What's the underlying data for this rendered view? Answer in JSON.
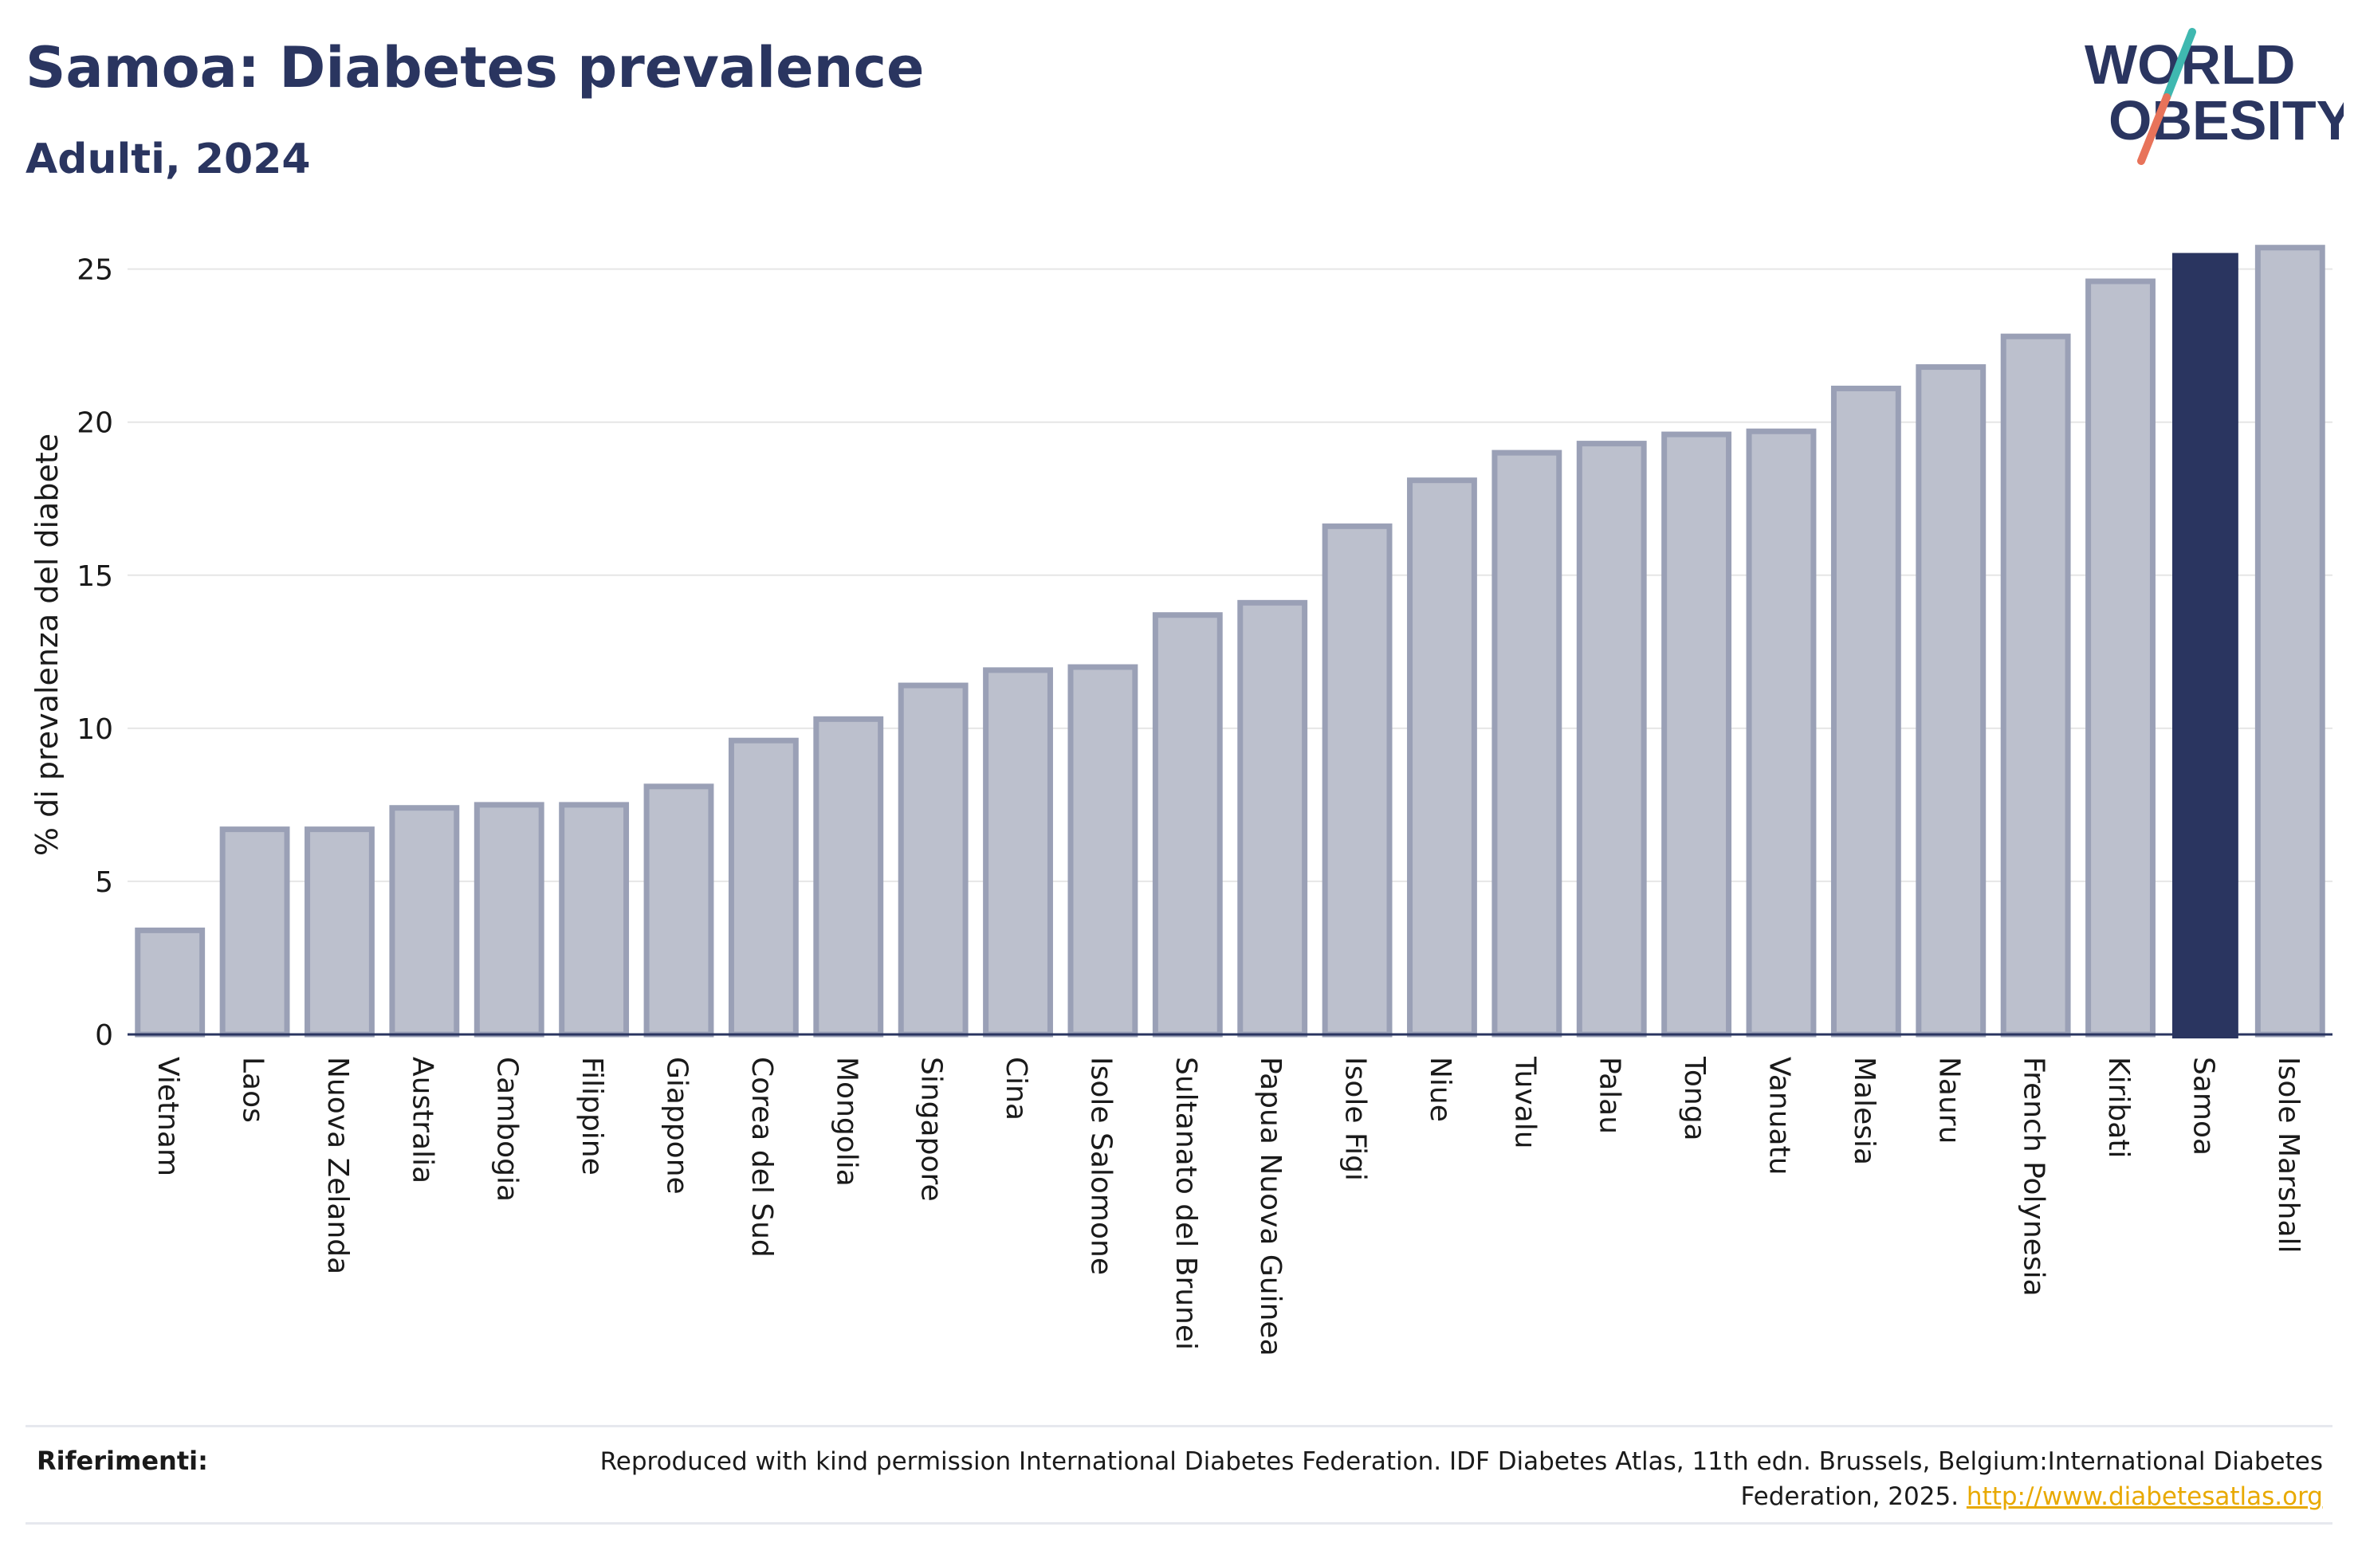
{
  "header": {
    "title": "Samoa: Diabetes prevalence",
    "subtitle": "Adulti, 2024"
  },
  "logo": {
    "line1": "WORLD",
    "line2": "OBESITY",
    "accent_teal": "#3fb8b0",
    "accent_coral": "#e8735a",
    "text_color": "#2a3560"
  },
  "chart_data": {
    "type": "bar",
    "ylabel": "% di prevalenza del diabete",
    "xlabel": "",
    "ylim": [
      0,
      26.5
    ],
    "yticks": [
      0,
      5,
      10,
      15,
      20,
      25
    ],
    "grid": true,
    "highlight": "Samoa",
    "colors": {
      "bar_fill": "#bcc0cd",
      "bar_stroke": "#9aa0b6",
      "highlight_fill": "#2a3560",
      "grid": "#e6e6e6",
      "axis": "#2a3560"
    },
    "categories": [
      "Vietnam",
      "Laos",
      "Nuova Zelanda",
      "Australia",
      "Cambogia",
      "Filippine",
      "Giappone",
      "Corea del Sud",
      "Mongolia",
      "Singapore",
      "Cina",
      "Isole Salomone",
      "Sultanato del Brunei",
      "Papua Nuova Guinea",
      "Isole Figi",
      "Niue",
      "Tuvalu",
      "Palau",
      "Tonga",
      "Vanuatu",
      "Malesia",
      "Nauru",
      "French Polynesia",
      "Kiribati",
      "Samoa",
      "Isole Marshall"
    ],
    "values": [
      3.4,
      6.7,
      6.7,
      7.4,
      7.5,
      7.5,
      8.1,
      9.6,
      10.3,
      11.4,
      11.9,
      12.0,
      13.7,
      14.1,
      16.6,
      18.1,
      19.0,
      19.3,
      19.6,
      19.7,
      21.1,
      21.8,
      22.8,
      24.6,
      25.5,
      25.7
    ]
  },
  "references": {
    "label": "Riferimenti:",
    "text": "Reproduced with kind permission International Diabetes Federation. IDF Diabetes Atlas, 11th edn. Brussels, Belgium:International Diabetes Federation, 2025.",
    "link": "http://www.diabetesatlas.org"
  }
}
